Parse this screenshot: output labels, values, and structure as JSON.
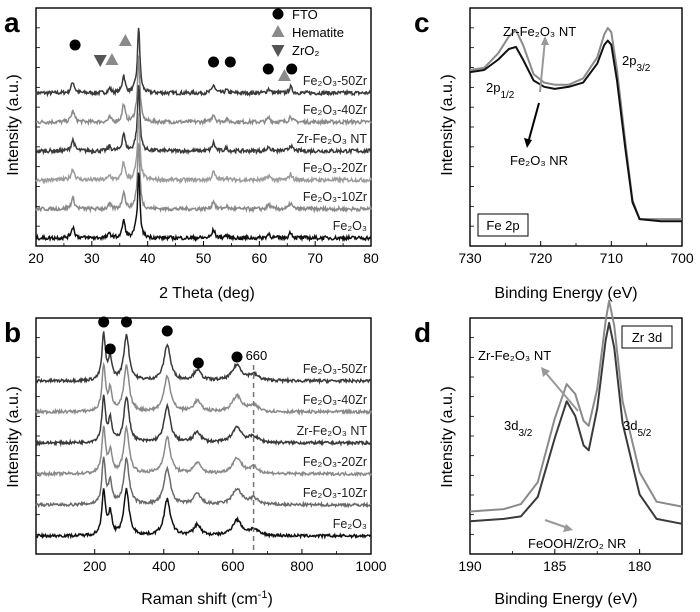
{
  "colors": {
    "black": "#111111",
    "dark": "#3a3a3a",
    "mid": "#6a6a6a",
    "gray": "#8a8a8a",
    "light": "#9c9c9c"
  },
  "chart_data": [
    {
      "id": "a",
      "panel_letter": "a",
      "type": "line",
      "xlabel": "2 Theta (deg)",
      "ylabel": "Intensity (a.u.)",
      "xlim": [
        20,
        80
      ],
      "xticks": [
        20,
        30,
        40,
        50,
        60,
        70,
        80
      ],
      "legend": {
        "placement": "top-right",
        "entries": [
          {
            "marker": "circle",
            "label": "FTO"
          },
          {
            "marker": "triangle-up",
            "label": "Hematite"
          },
          {
            "marker": "triangle-down",
            "label": "ZrO2",
            "display": "ZrO₂"
          }
        ]
      },
      "peaks": [
        {
          "x": 26.6,
          "h": 1.0,
          "w": 0.35
        },
        {
          "x": 33.2,
          "h": 0.4,
          "w": 0.3
        },
        {
          "x": 35.7,
          "h": 1.6,
          "w": 0.3
        },
        {
          "x": 37.8,
          "h": 0.35,
          "w": 0.3
        },
        {
          "x": 38.4,
          "h": 6.0,
          "w": 0.25
        },
        {
          "x": 51.8,
          "h": 0.75,
          "w": 0.3
        },
        {
          "x": 54.1,
          "h": 0.25,
          "w": 0.3
        },
        {
          "x": 61.7,
          "h": 0.4,
          "w": 0.3
        },
        {
          "x": 65.6,
          "h": 0.55,
          "w": 0.3
        }
      ],
      "markers": [
        {
          "x": 27.0,
          "kind": "circle"
        },
        {
          "x": 31.5,
          "kind": "triangle-down"
        },
        {
          "x": 33.6,
          "kind": "triangle-up"
        },
        {
          "x": 36.0,
          "kind": "triangle-up"
        },
        {
          "x": 51.8,
          "kind": "circle"
        },
        {
          "x": 54.8,
          "kind": "circle"
        },
        {
          "x": 61.6,
          "kind": "circle"
        },
        {
          "x": 64.5,
          "kind": "triangle-up"
        },
        {
          "x": 65.8,
          "kind": "circle"
        }
      ],
      "series": [
        {
          "name": "Fe2O3-50Zr",
          "display": "Fe₂O₃-50Zr",
          "offset": 5,
          "color": "dark"
        },
        {
          "name": "Fe2O3-40Zr",
          "display": "Fe₂O₃-40Zr",
          "offset": 4,
          "color": "gray"
        },
        {
          "name": "Zr-Fe2O3 NT",
          "display": "Zr-Fe₂O₃ NT",
          "offset": 3,
          "color": "dark"
        },
        {
          "name": "Fe2O3-20Zr",
          "display": "Fe₂O₃-20Zr",
          "offset": 2,
          "color": "light"
        },
        {
          "name": "Fe2O3-10Zr",
          "display": "Fe₂O₃-10Zr",
          "offset": 1,
          "color": "gray"
        },
        {
          "name": "Fe2O3",
          "display": "Fe₂O₃",
          "offset": 0,
          "color": "black"
        }
      ]
    },
    {
      "id": "b",
      "panel_letter": "b",
      "type": "line",
      "xlabel": "Raman shift (cm-1)",
      "xlabel_display": "Raman shift (cm⁻¹)",
      "ylabel": "Intensity (a.u.)",
      "xlim": [
        30,
        1000
      ],
      "xticks": [
        200,
        400,
        600,
        800,
        1000
      ],
      "peaks": [
        {
          "x": 226,
          "h": 1.9,
          "w": 6
        },
        {
          "x": 245,
          "h": 0.9,
          "w": 6
        },
        {
          "x": 292,
          "h": 1.9,
          "w": 9
        },
        {
          "x": 410,
          "h": 1.5,
          "w": 11
        },
        {
          "x": 497,
          "h": 0.45,
          "w": 12
        },
        {
          "x": 612,
          "h": 0.65,
          "w": 16
        },
        {
          "x": 660,
          "h": 0.25,
          "w": 16
        }
      ],
      "markers": [
        {
          "x": 226,
          "kind": "circle"
        },
        {
          "x": 245,
          "kind": "circle"
        },
        {
          "x": 292,
          "kind": "circle"
        },
        {
          "x": 410,
          "kind": "circle"
        },
        {
          "x": 500,
          "kind": "circle"
        },
        {
          "x": 612,
          "kind": "circle"
        }
      ],
      "annotation": {
        "x": 660,
        "label": "660"
      },
      "series": [
        {
          "name": "Fe2O3-50Zr",
          "display": "Fe₂O₃-50Zr",
          "offset": 5,
          "color": "dark"
        },
        {
          "name": "Fe2O3-40Zr",
          "display": "Fe₂O₃-40Zr",
          "offset": 4,
          "color": "gray"
        },
        {
          "name": "Zr-Fe2O3 NT",
          "display": "Zr-Fe₂O₃ NT",
          "offset": 3,
          "color": "dark"
        },
        {
          "name": "Fe2O3-20Zr",
          "display": "Fe₂O₃-20Zr",
          "offset": 2,
          "color": "gray"
        },
        {
          "name": "Fe2O3-10Zr",
          "display": "Fe₂O₃-10Zr",
          "offset": 1,
          "color": "mid"
        },
        {
          "name": "Fe2O3",
          "display": "Fe₂O₃",
          "offset": 0,
          "color": "black"
        }
      ]
    },
    {
      "id": "c",
      "panel_letter": "c",
      "type": "line",
      "xlabel": "Binding Energy (eV)",
      "ylabel": "Intensity (a.u.)",
      "xlim": [
        730,
        700
      ],
      "xticks": [
        730,
        720,
        710,
        700
      ],
      "inset_label": "Fe 2p",
      "peak_labels": [
        {
          "text": "2p1/2",
          "display_main": "2p",
          "display_sub": "1/2",
          "x": 723.6
        },
        {
          "text": "2p3/2",
          "display_main": "2p",
          "display_sub": "3/2",
          "x": 710.8
        }
      ],
      "series": [
        {
          "name": "Zr-Fe2O3 NT",
          "display": "Zr-Fe₂O₃ NT",
          "color": "gray",
          "points": [
            [
              730,
              0.8
            ],
            [
              728,
              0.81
            ],
            [
              726,
              0.88
            ],
            [
              724.5,
              0.96
            ],
            [
              723.5,
              0.99
            ],
            [
              722.5,
              0.92
            ],
            [
              721,
              0.78
            ],
            [
              719.5,
              0.74
            ],
            [
              718,
              0.73
            ],
            [
              716,
              0.73
            ],
            [
              714,
              0.76
            ],
            [
              712,
              0.86
            ],
            [
              711,
              0.97
            ],
            [
              710.5,
              1.0
            ],
            [
              710,
              0.98
            ],
            [
              709.2,
              0.8
            ],
            [
              708,
              0.45
            ],
            [
              707,
              0.18
            ],
            [
              706,
              0.09
            ],
            [
              703,
              0.09
            ],
            [
              700,
              0.09
            ]
          ]
        },
        {
          "name": "Fe2O3 NR",
          "display": "Fe₂O₃ NR",
          "color": "black",
          "points": [
            [
              730,
              0.79
            ],
            [
              728,
              0.8
            ],
            [
              726,
              0.85
            ],
            [
              724.5,
              0.9
            ],
            [
              723.5,
              0.91
            ],
            [
              722.5,
              0.85
            ],
            [
              721,
              0.75
            ],
            [
              719.5,
              0.72
            ],
            [
              718,
              0.71
            ],
            [
              716,
              0.72
            ],
            [
              714,
              0.74
            ],
            [
              712,
              0.83
            ],
            [
              711,
              0.92
            ],
            [
              710.5,
              0.94
            ],
            [
              710,
              0.92
            ],
            [
              709.2,
              0.75
            ],
            [
              708,
              0.42
            ],
            [
              707,
              0.17
            ],
            [
              706,
              0.09
            ],
            [
              703,
              0.08
            ],
            [
              700,
              0.08
            ]
          ]
        }
      ]
    },
    {
      "id": "d",
      "panel_letter": "d",
      "type": "line",
      "xlabel": "Binding Energy (eV)",
      "ylabel": "Intensity (a.u.)",
      "xlim": [
        190,
        177.5
      ],
      "xticks": [
        190,
        185,
        180
      ],
      "inset_label": "Zr 3d",
      "peak_labels": [
        {
          "text": "3d3/2",
          "display_main": "3d",
          "display_sub": "3/2",
          "x": 184.2
        },
        {
          "text": "3d5/2",
          "display_main": "3d",
          "display_sub": "5/2",
          "x": 181.8
        }
      ],
      "series": [
        {
          "name": "Zr-Fe2O3 NT",
          "display": "Zr-Fe₂O₃ NT",
          "color": "gray",
          "points": [
            [
              190,
              0.1
            ],
            [
              188,
              0.11
            ],
            [
              187,
              0.13
            ],
            [
              186,
              0.22
            ],
            [
              185,
              0.48
            ],
            [
              184.3,
              0.62
            ],
            [
              183.8,
              0.58
            ],
            [
              183.3,
              0.47
            ],
            [
              183,
              0.45
            ],
            [
              182.5,
              0.6
            ],
            [
              182,
              0.88
            ],
            [
              181.8,
              0.96
            ],
            [
              181.5,
              0.86
            ],
            [
              181,
              0.55
            ],
            [
              180,
              0.26
            ],
            [
              179,
              0.14
            ],
            [
              177.5,
              0.12
            ]
          ]
        },
        {
          "name": "FeOOH/ZrO2 NR",
          "display": "FeOOH/ZrO₂ NR",
          "color": "dark",
          "points": [
            [
              190,
              0.06
            ],
            [
              188,
              0.07
            ],
            [
              187,
              0.08
            ],
            [
              186,
              0.16
            ],
            [
              185,
              0.4
            ],
            [
              184.3,
              0.55
            ],
            [
              183.8,
              0.49
            ],
            [
              183.3,
              0.37
            ],
            [
              183,
              0.35
            ],
            [
              182.5,
              0.52
            ],
            [
              182,
              0.8
            ],
            [
              181.8,
              0.87
            ],
            [
              181.5,
              0.77
            ],
            [
              181,
              0.46
            ],
            [
              180,
              0.17
            ],
            [
              179,
              0.07
            ],
            [
              177.5,
              0.05
            ]
          ]
        }
      ]
    }
  ]
}
